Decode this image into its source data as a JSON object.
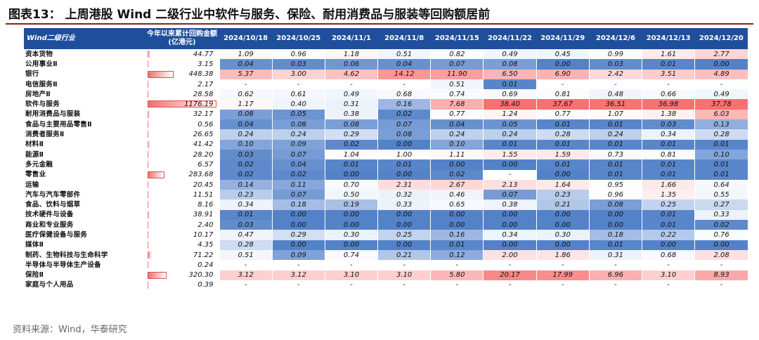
{
  "title": "图表13： 上周港股 Wind 二级行业中软件与服务、保险、耐用消费品与服装等回购额居前",
  "source": "资料来源：Wind，华泰研究",
  "table": {
    "header_name": "Wind二级行业",
    "header_ytd": "今年以来累计回购金额(亿港元)",
    "dates": [
      "2024/10/18",
      "2024/10/25",
      "2024/11/1",
      "2024/11/8",
      "2024/11/15",
      "2024/11/22",
      "2024/11/29",
      "2024/12/6",
      "2024/12/13",
      "2024/12/20"
    ],
    "rows": [
      {
        "name": "资本货物",
        "ytd": "44.77",
        "vals": [
          "1.09",
          "0.96",
          "1.18",
          "0.51",
          "0.82",
          "0.49",
          "0.45",
          "0.99",
          "1.61",
          "2.77"
        ]
      },
      {
        "name": "公用事业Ⅱ",
        "ytd": "3.15",
        "vals": [
          "0.04",
          "0.03",
          "0.06",
          "0.04",
          "0.07",
          "0.08",
          "0.00",
          "0.03",
          "0.01",
          "0.00"
        ]
      },
      {
        "name": "银行",
        "ytd": "448.38",
        "vals": [
          "5.37",
          "3.00",
          "4.62",
          "14.12",
          "11.90",
          "6.50",
          "6.90",
          "2.42",
          "3.51",
          "4.89"
        ]
      },
      {
        "name": "电信服务Ⅱ",
        "ytd": "2.17",
        "vals": [
          "-",
          "-",
          "-",
          "-",
          "0.51",
          "0.01",
          "-",
          "-",
          "-",
          "-"
        ]
      },
      {
        "name": "房地产Ⅱ",
        "ytd": "28.58",
        "vals": [
          "0.62",
          "0.61",
          "0.49",
          "0.68",
          "0.74",
          "0.69",
          "0.81",
          "0.48",
          "0.66",
          "0.49"
        ]
      },
      {
        "name": "软件与服务",
        "ytd": "1176.19",
        "vals": [
          "1.17",
          "0.40",
          "0.31",
          "0.16",
          "7.68",
          "38.40",
          "37.67",
          "36.51",
          "36.98",
          "37.78"
        ]
      },
      {
        "name": "耐用消费品与服装",
        "ytd": "32.17",
        "vals": [
          "0.08",
          "0.05",
          "0.38",
          "0.02",
          "0.77",
          "1.24",
          "0.77",
          "1.07",
          "1.38",
          "6.03"
        ]
      },
      {
        "name": "食品与主要用品零售Ⅱ",
        "ytd": "0.56",
        "vals": [
          "0.04",
          "0.08",
          "0.08",
          "0.07",
          "0.04",
          "0.05",
          "0.01",
          "0.01",
          "0.03",
          "0.13"
        ]
      },
      {
        "name": "消费者服务Ⅱ",
        "ytd": "26.65",
        "vals": [
          "0.24",
          "0.24",
          "0.29",
          "0.08",
          "0.24",
          "0.24",
          "0.28",
          "0.24",
          "0.34",
          "0.28"
        ]
      },
      {
        "name": "材料Ⅱ",
        "ytd": "41.42",
        "vals": [
          "0.10",
          "0.09",
          "0.02",
          "0.00",
          "0.10",
          "0.01",
          "0.01",
          "0.01",
          "0.01",
          "0.01"
        ]
      },
      {
        "name": "能源Ⅱ",
        "ytd": "28.20",
        "vals": [
          "0.03",
          "0.07",
          "1.04",
          "1.00",
          "1.11",
          "1.55",
          "1.59",
          "0.73",
          "0.81",
          "0.10"
        ]
      },
      {
        "name": "多元金融",
        "ytd": "6.57",
        "vals": [
          "0.02",
          "0.04",
          "0.01",
          "0.01",
          "0.00",
          "0.00",
          "0.01",
          "0.01",
          "0.01",
          "0.01"
        ]
      },
      {
        "name": "零售业",
        "ytd": "283.68",
        "vals": [
          "0.02",
          "0.02",
          "0.00",
          "0.00",
          "0.02",
          "-",
          "0.00",
          "0.01",
          "0.01",
          "0.01"
        ]
      },
      {
        "name": "运输",
        "ytd": "20.45",
        "vals": [
          "0.14",
          "0.11",
          "0.70",
          "2.31",
          "2.67",
          "2.13",
          "1.64",
          "0.95",
          "1.66",
          "0.64"
        ]
      },
      {
        "name": "汽车与汽车零部件",
        "ytd": "11.51",
        "vals": [
          "0.23",
          "0.07",
          "0.50",
          "0.32",
          "0.46",
          "0.07",
          "0.23",
          "0.96",
          "1.35",
          "0.55"
        ]
      },
      {
        "name": "食品、饮料与烟草",
        "ytd": "8.16",
        "vals": [
          "0.34",
          "0.18",
          "0.19",
          "0.33",
          "0.65",
          "0.38",
          "0.21",
          "0.08",
          "0.25",
          "0.27"
        ]
      },
      {
        "name": "技术硬件与设备",
        "ytd": "38.91",
        "vals": [
          "0.01",
          "0.00",
          "0.00",
          "0.00",
          "0.00",
          "0.00",
          "0.00",
          "0.00",
          "0.01",
          "0.33"
        ]
      },
      {
        "name": "商业和专业服务",
        "ytd": "2.40",
        "vals": [
          "0.03",
          "0.00",
          "0.00",
          "0.00",
          "0.00",
          "0.00",
          "0.00",
          "0.00",
          "0.01",
          "0.02"
        ]
      },
      {
        "name": "医疗保健设备与服务",
        "ytd": "10.17",
        "vals": [
          "0.47",
          "0.29",
          "0.30",
          "0.25",
          "0.16",
          "0.34",
          "0.30",
          "0.18",
          "0.22",
          "0.76"
        ]
      },
      {
        "name": "媒体Ⅱ",
        "ytd": "4.35",
        "vals": [
          "0.28",
          "0.00",
          "0.00",
          "0.00",
          "0.01",
          "0.00",
          "0.00",
          "0.01",
          "0.00",
          "0.00"
        ]
      },
      {
        "name": "制药、生物科技与生命科学",
        "ytd": "71.22",
        "vals": [
          "0.51",
          "0.09",
          "0.74",
          "0.21",
          "0.12",
          "2.00",
          "1.86",
          "0.31",
          "0.68",
          "2.08"
        ]
      },
      {
        "name": "半导体与半导体生产设备",
        "ytd": "0.24",
        "vals": [
          "-",
          "-",
          "-",
          "-",
          "-",
          "-",
          "-",
          "-",
          "-",
          "-"
        ]
      },
      {
        "name": "保险Ⅱ",
        "ytd": "320.30",
        "vals": [
          "3.12",
          "3.12",
          "3.10",
          "3.10",
          "5.80",
          "20.17",
          "17.99",
          "6.96",
          "3.10",
          "8.93"
        ]
      },
      {
        "name": "家庭与个人用品",
        "ytd": "0.39",
        "vals": [
          "-",
          "-",
          "-",
          "-",
          "-",
          "-",
          "-",
          "-",
          "-",
          "-"
        ]
      }
    ]
  }
}
